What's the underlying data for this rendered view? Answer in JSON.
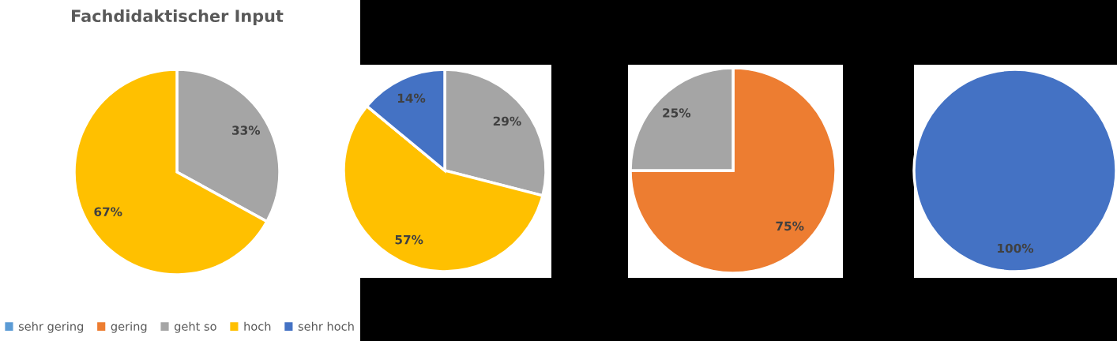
{
  "chart_data": [
    {
      "type": "pie",
      "title": "Fachdidaktischer Input",
      "categories": [
        "sehr gering",
        "gering",
        "geht so",
        "hoch",
        "sehr hoch"
      ],
      "values": [
        0,
        0,
        33,
        67,
        0
      ],
      "colors": [
        "#5b9bd5",
        "#ed7d31",
        "#a5a5a5",
        "#ffc000",
        "#4472c4"
      ],
      "value_labels": [
        null,
        null,
        "33%",
        "67%",
        null
      ],
      "legend": "bottom"
    },
    {
      "type": "pie",
      "categories": [
        null,
        null,
        null
      ],
      "values": [
        29,
        57,
        14
      ],
      "colors": [
        "#a5a5a5",
        "#ffc000",
        "#4472c4"
      ],
      "value_labels": [
        "29%",
        "57%",
        "14%"
      ]
    },
    {
      "type": "pie",
      "categories": [
        null,
        null
      ],
      "values": [
        75,
        25
      ],
      "colors": [
        "#ed7d31",
        "#a5a5a5"
      ],
      "value_labels": [
        "75%",
        "25%"
      ]
    },
    {
      "type": "pie",
      "categories": [
        null
      ],
      "values": [
        100
      ],
      "colors": [
        "#4472c4"
      ],
      "value_labels": [
        "100%"
      ]
    }
  ]
}
